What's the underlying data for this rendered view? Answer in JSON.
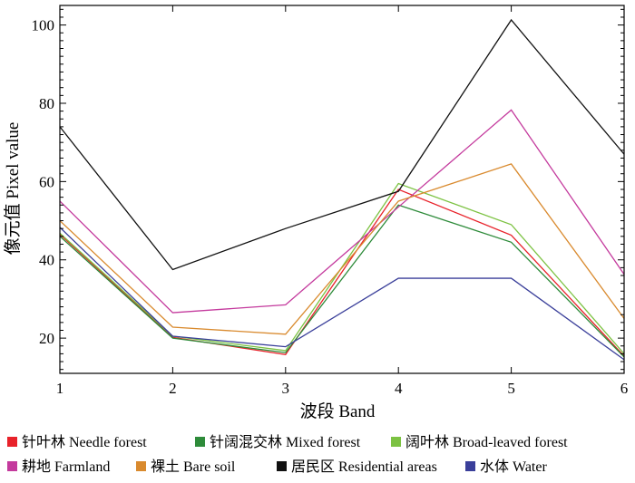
{
  "chart_data": {
    "type": "line",
    "title": "",
    "xlabel": "波段 Band",
    "ylabel": "像元值 Pixel value",
    "x": [
      1,
      2,
      3,
      4,
      5,
      6
    ],
    "xlim": [
      1,
      6
    ],
    "ylim": [
      11,
      105
    ],
    "yticks": [
      20,
      40,
      60,
      80,
      100
    ],
    "grid": false,
    "legend_position": "bottom",
    "series": [
      {
        "name": "针叶林 Needle forest",
        "color": "#e8222a",
        "values": [
          46.5,
          20.2,
          15.8,
          58.0,
          46.3,
          15.4
        ]
      },
      {
        "name": "针阔混交林 Mixed forest",
        "color": "#2e8b3a",
        "values": [
          46.0,
          20.0,
          16.3,
          54.0,
          44.5,
          15.2
        ]
      },
      {
        "name": "阔叶林 Broad-leaved forest",
        "color": "#7cc242",
        "values": [
          46.8,
          20.5,
          16.8,
          59.5,
          49.0,
          16.0
        ]
      },
      {
        "name": "耕地 Farmland",
        "color": "#c43a9d",
        "values": [
          55.0,
          26.5,
          28.5,
          53.5,
          78.3,
          36.3
        ]
      },
      {
        "name": "裸土 Bare soil",
        "color": "#d98a2e",
        "values": [
          50.0,
          22.8,
          21.0,
          55.0,
          64.5,
          25.0
        ]
      },
      {
        "name": "居民区 Residential areas",
        "color": "#111111",
        "values": [
          74.0,
          37.5,
          48.0,
          57.5,
          101.3,
          67.0
        ]
      },
      {
        "name": "水体 Water",
        "color": "#3a3f9a",
        "values": [
          48.3,
          20.5,
          17.8,
          35.3,
          35.3,
          14.5
        ]
      }
    ]
  }
}
